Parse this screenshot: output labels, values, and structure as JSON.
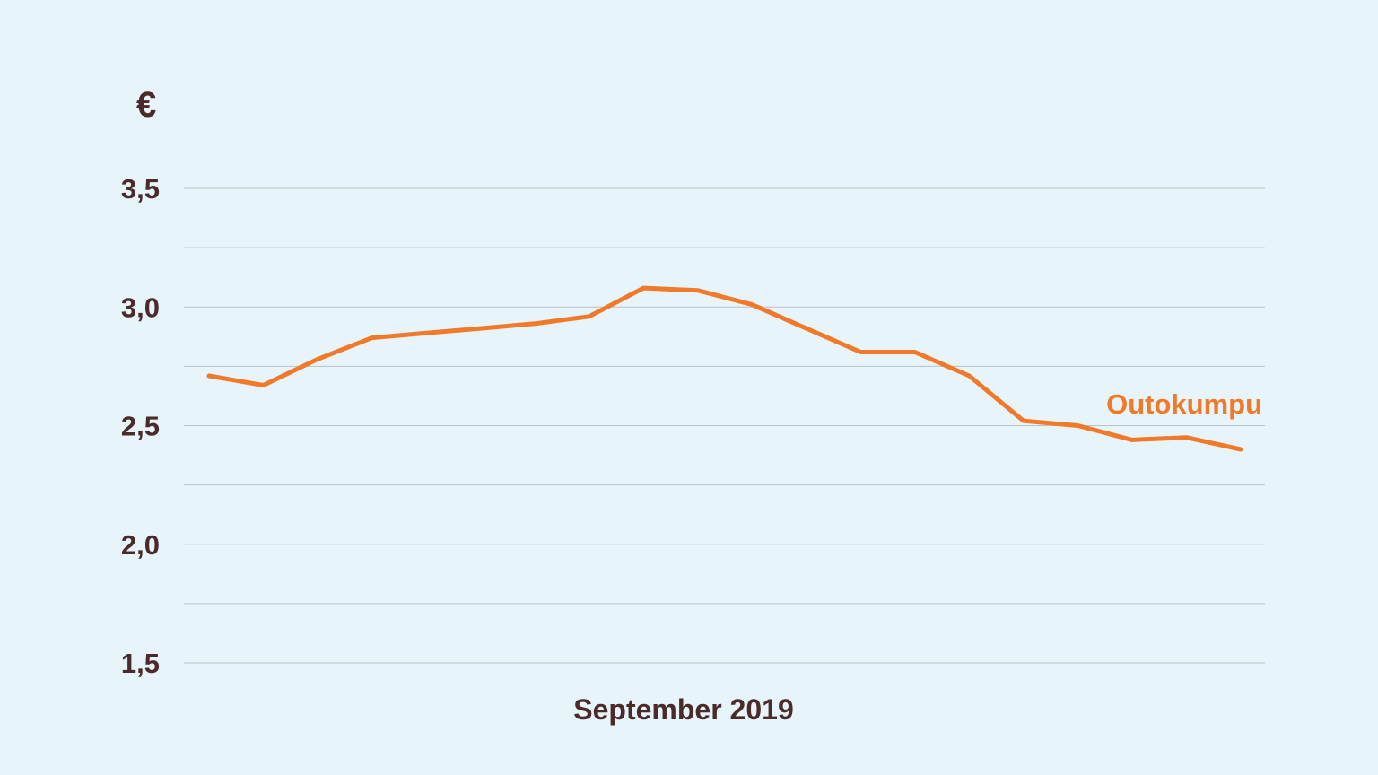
{
  "chart_data": {
    "type": "line",
    "unit_label": "€",
    "xlabel": "September 2019",
    "ylim": [
      1.5,
      3.5
    ],
    "y_ticks": [
      {
        "value": 3.5,
        "label": "3,5"
      },
      {
        "value": 3.0,
        "label": "3,0"
      },
      {
        "value": 2.5,
        "label": "2,5"
      },
      {
        "value": 2.0,
        "label": "2,0"
      },
      {
        "value": 1.5,
        "label": "1,5"
      }
    ],
    "grid_values": [
      3.5,
      3.25,
      3.0,
      2.75,
      2.5,
      2.25,
      2.0,
      1.75,
      1.5
    ],
    "grid": true,
    "series": [
      {
        "name": "Outokumpu",
        "color": "#f07a2a",
        "values": [
          2.71,
          2.67,
          2.78,
          2.87,
          2.89,
          2.91,
          2.93,
          2.96,
          3.08,
          3.07,
          3.01,
          2.91,
          2.81,
          2.81,
          2.71,
          2.52,
          2.5,
          2.44,
          2.45,
          2.4
        ]
      }
    ]
  },
  "colors": {
    "background": "#e7f4fa",
    "text": "#4a2a2a",
    "grid": "#b9c2c7",
    "line": "#f07a2a"
  }
}
